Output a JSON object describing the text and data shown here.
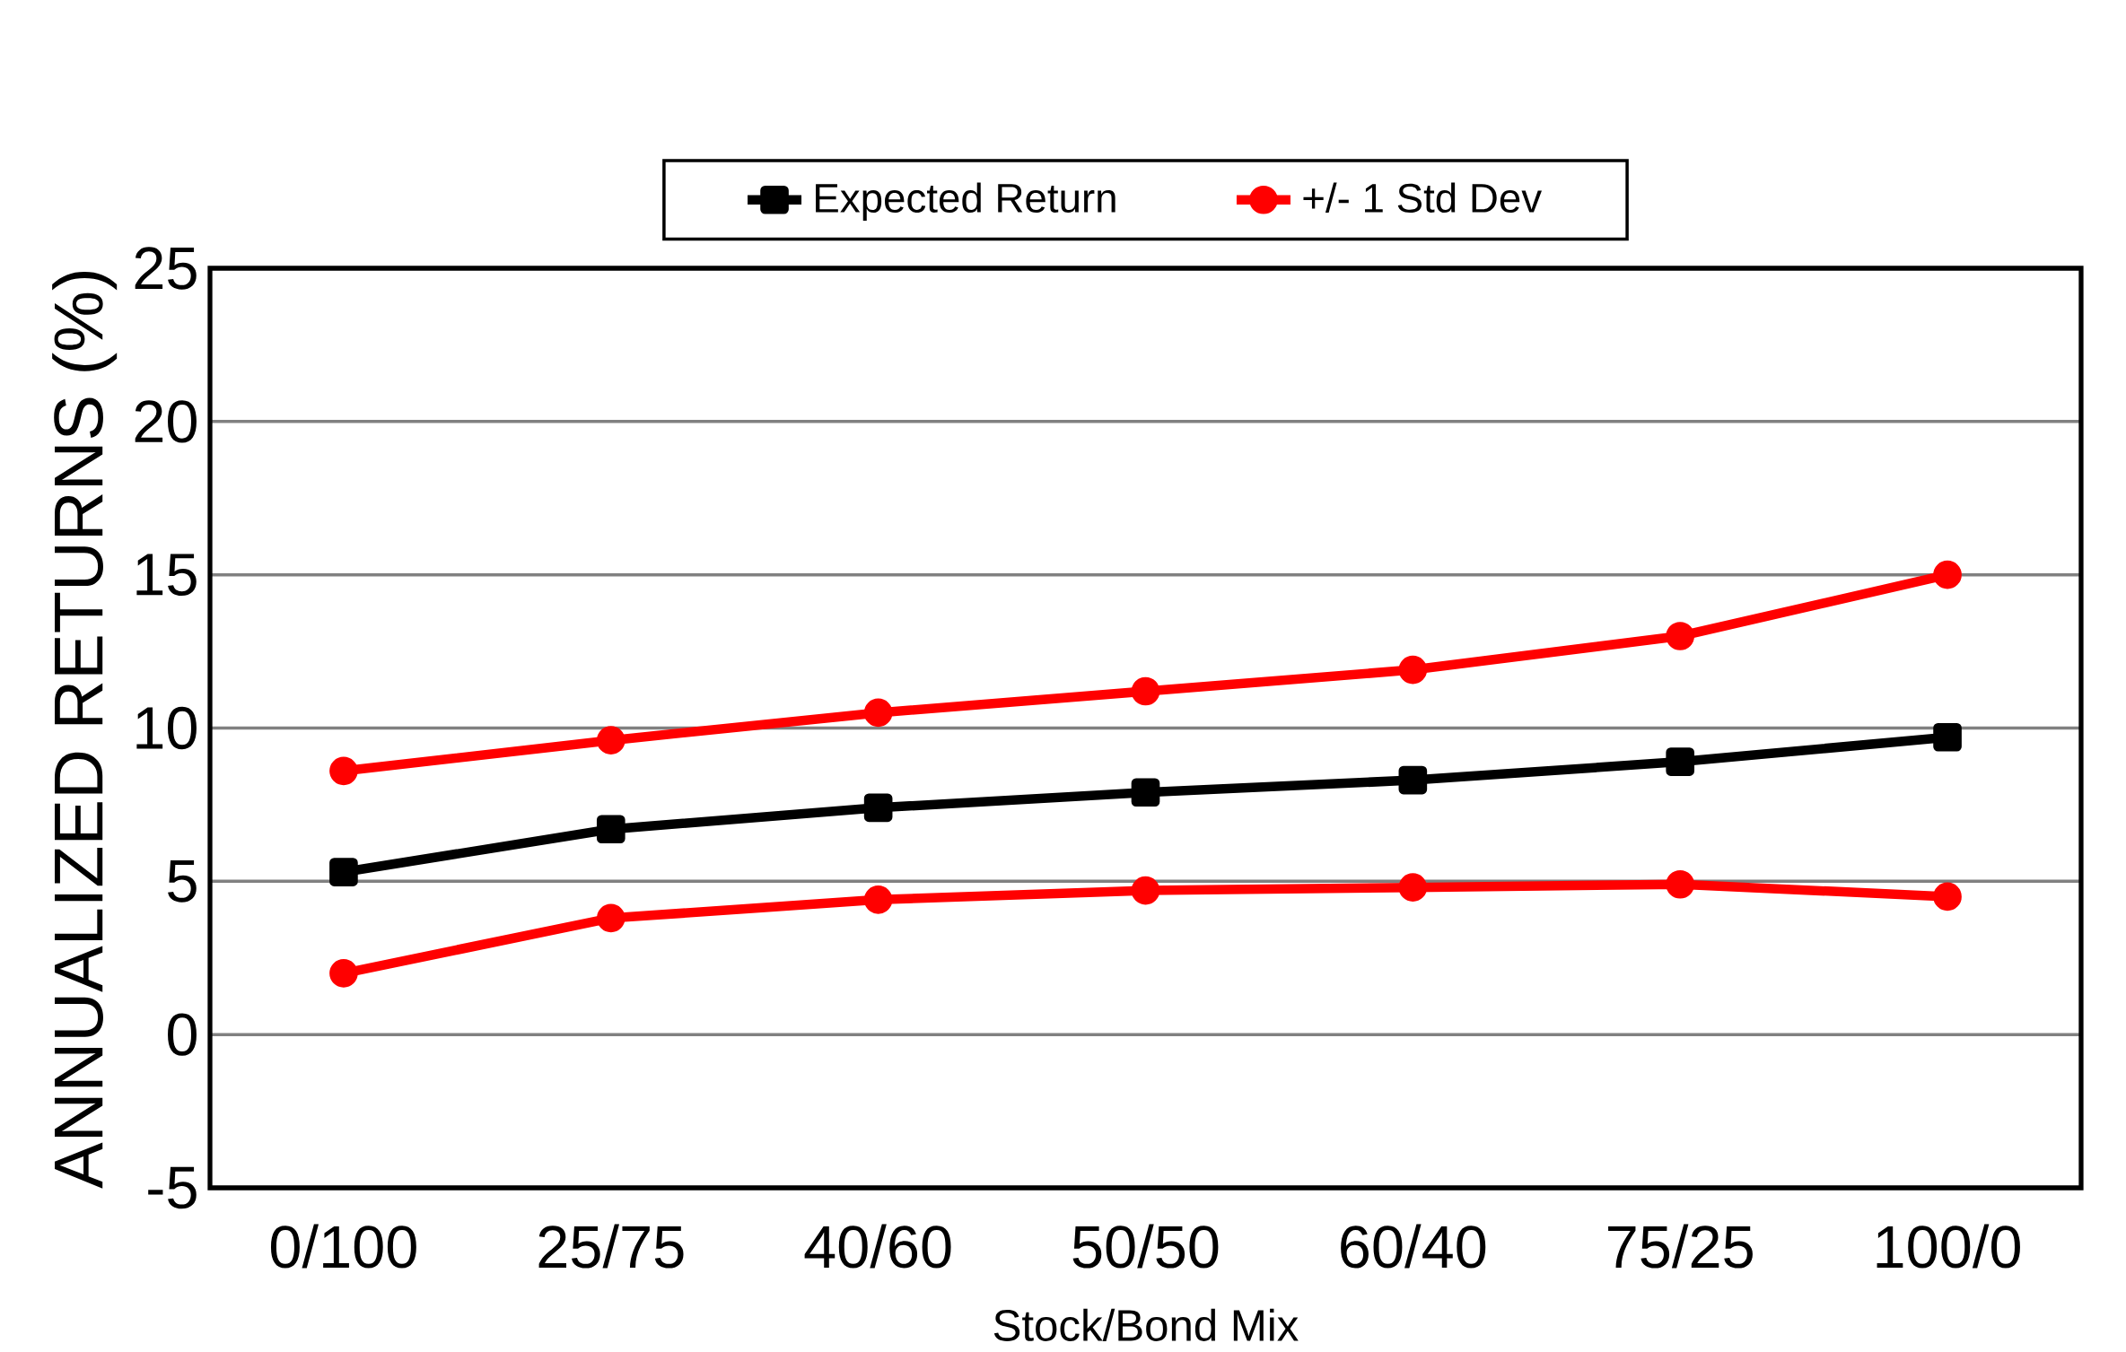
{
  "chart_data": {
    "type": "line",
    "xlabel": "Stock/Bond Mix",
    "ylabel": "ANNUALIZED RETURNS (%)",
    "categories": [
      "0/100",
      "25/75",
      "40/60",
      "50/50",
      "60/40",
      "75/25",
      "100/0"
    ],
    "series": [
      {
        "name": "Expected Return",
        "color": "#000000",
        "marker": "square",
        "values": [
          5.3,
          6.7,
          7.4,
          7.9,
          8.3,
          8.9,
          9.7
        ]
      },
      {
        "name": "+/- 1 Std Dev",
        "color": "#ff0000",
        "marker": "circle",
        "values": [
          8.6,
          9.6,
          10.5,
          11.2,
          11.9,
          13.0,
          15.0
        ]
      },
      {
        "color": "#ff0000",
        "marker": "circle",
        "values": [
          2.0,
          3.8,
          4.4,
          4.7,
          4.8,
          4.9,
          4.5
        ]
      }
    ],
    "ylim": [
      -5,
      25
    ],
    "yticks": [
      -5,
      0,
      5,
      10,
      15,
      20,
      25
    ],
    "grid": "y",
    "legend": "top",
    "line_style": "solid"
  }
}
